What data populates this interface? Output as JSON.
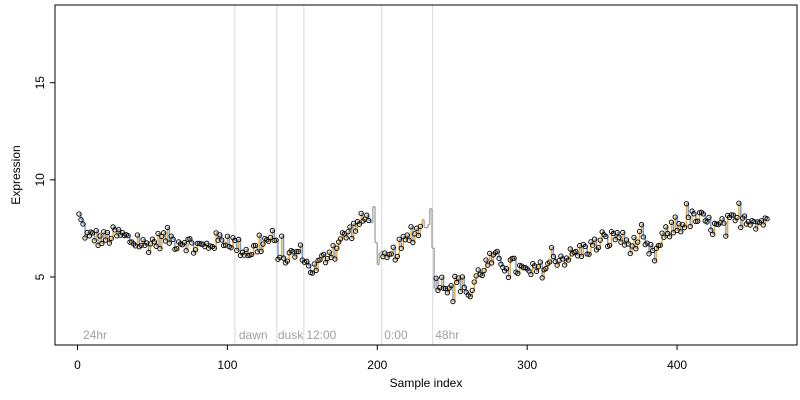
{
  "chart_data": {
    "type": "line",
    "title": "",
    "xlabel": "Sample index",
    "ylabel": "Expression",
    "xlim": [
      -15,
      480
    ],
    "ylim": [
      1.5,
      19
    ],
    "xticks": [
      0,
      100,
      200,
      300,
      400
    ],
    "yticks": [
      5,
      10,
      15
    ],
    "grid": false,
    "colors": {
      "up": "#f5a623",
      "down": "#6f9bd8",
      "gap": "#a8a8a8",
      "point": "#000000",
      "vline": "#d9d9d9"
    },
    "vlines": [
      105,
      133,
      151,
      203,
      237
    ],
    "annotations": [
      {
        "x": 3,
        "text": "24hr"
      },
      {
        "x": 107,
        "text": "dawn"
      },
      {
        "x": 133,
        "text": "dusk"
      },
      {
        "x": 152,
        "text": "12:00"
      },
      {
        "x": 204,
        "text": "0:00"
      },
      {
        "x": 238,
        "text": "48hr"
      }
    ],
    "gaps": [
      [
        195,
        203
      ],
      [
        229,
        238
      ]
    ],
    "series": [
      {
        "anchors": [
          [
            1,
            8.1
          ],
          [
            5,
            7.3
          ],
          [
            8,
            6.9
          ],
          [
            10,
            7.2
          ],
          [
            15,
            6.9
          ],
          [
            20,
            7.0
          ],
          [
            25,
            7.2
          ],
          [
            30,
            7.1
          ],
          [
            35,
            6.9
          ],
          [
            40,
            6.8
          ],
          [
            45,
            6.6
          ],
          [
            50,
            6.8
          ],
          [
            55,
            6.9
          ],
          [
            60,
            7.1
          ],
          [
            65,
            6.8
          ],
          [
            70,
            6.9
          ],
          [
            75,
            6.7
          ],
          [
            80,
            6.6
          ],
          [
            85,
            6.5
          ],
          [
            90,
            6.8
          ],
          [
            95,
            6.9
          ],
          [
            100,
            7.0
          ],
          [
            105,
            6.7
          ],
          [
            110,
            6.4
          ],
          [
            115,
            6.3
          ],
          [
            120,
            6.5
          ],
          [
            125,
            6.8
          ],
          [
            130,
            7.0
          ],
          [
            135,
            6.1
          ],
          [
            140,
            6.0
          ],
          [
            145,
            6.2
          ],
          [
            150,
            6.3
          ],
          [
            153,
            5.6
          ],
          [
            158,
            5.4
          ],
          [
            163,
            5.8
          ],
          [
            168,
            6.3
          ],
          [
            173,
            6.7
          ],
          [
            178,
            7.1
          ],
          [
            183,
            7.4
          ],
          [
            188,
            7.8
          ],
          [
            193,
            8.0
          ],
          [
            197,
            8.3
          ],
          [
            200,
            6.0
          ],
          [
            205,
            5.8
          ],
          [
            208,
            5.9
          ],
          [
            212,
            6.3
          ],
          [
            216,
            6.6
          ],
          [
            220,
            6.9
          ],
          [
            225,
            7.3
          ],
          [
            230,
            7.6
          ],
          [
            235,
            8.2
          ],
          [
            238,
            4.8
          ],
          [
            243,
            4.7
          ],
          [
            248,
            4.6
          ],
          [
            253,
            4.7
          ],
          [
            258,
            4.6
          ],
          [
            262,
            4.0
          ],
          [
            266,
            5.0
          ],
          [
            270,
            5.4
          ],
          [
            275,
            5.8
          ],
          [
            280,
            5.9
          ],
          [
            285,
            5.8
          ],
          [
            290,
            5.6
          ],
          [
            295,
            5.4
          ],
          [
            300,
            5.2
          ],
          [
            305,
            5.3
          ],
          [
            310,
            5.4
          ],
          [
            315,
            5.7
          ],
          [
            320,
            6.0
          ],
          [
            325,
            6.0
          ],
          [
            330,
            6.1
          ],
          [
            335,
            6.3
          ],
          [
            340,
            6.5
          ],
          [
            345,
            6.6
          ],
          [
            350,
            6.8
          ],
          [
            355,
            6.9
          ],
          [
            360,
            7.2
          ],
          [
            365,
            6.8
          ],
          [
            370,
            6.6
          ],
          [
            375,
            6.9
          ],
          [
            380,
            6.4
          ],
          [
            385,
            6.1
          ],
          [
            390,
            6.9
          ],
          [
            395,
            7.4
          ],
          [
            400,
            7.6
          ],
          [
            405,
            7.8
          ],
          [
            410,
            8.0
          ],
          [
            415,
            8.0
          ],
          [
            420,
            7.8
          ],
          [
            425,
            7.5
          ],
          [
            430,
            7.6
          ],
          [
            435,
            7.8
          ],
          [
            440,
            7.9
          ],
          [
            445,
            8.1
          ],
          [
            450,
            8.0
          ],
          [
            455,
            7.8
          ],
          [
            460,
            8.0
          ]
        ],
        "jitter": 0.45
      }
    ]
  }
}
